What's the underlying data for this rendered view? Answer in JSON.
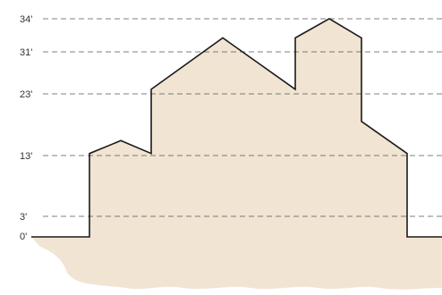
{
  "colors": {
    "building_fill": "#f1e4d2",
    "ground_fill": "#f1e4d2",
    "outline": "#1a1a1a",
    "guide": "#555555",
    "label": "#333333"
  },
  "height_markers": [
    {
      "label": "34'",
      "value": 34
    },
    {
      "label": "31'",
      "value": 31
    },
    {
      "label": "23'",
      "value": 23
    },
    {
      "label": "13'",
      "value": 13
    },
    {
      "label": "3'",
      "value": 3
    },
    {
      "label": "0'",
      "value": 0
    }
  ],
  "profile_heights_ft": [
    0,
    0,
    13,
    15,
    13,
    23,
    31,
    23,
    31,
    34,
    31,
    18,
    13,
    0,
    0
  ]
}
